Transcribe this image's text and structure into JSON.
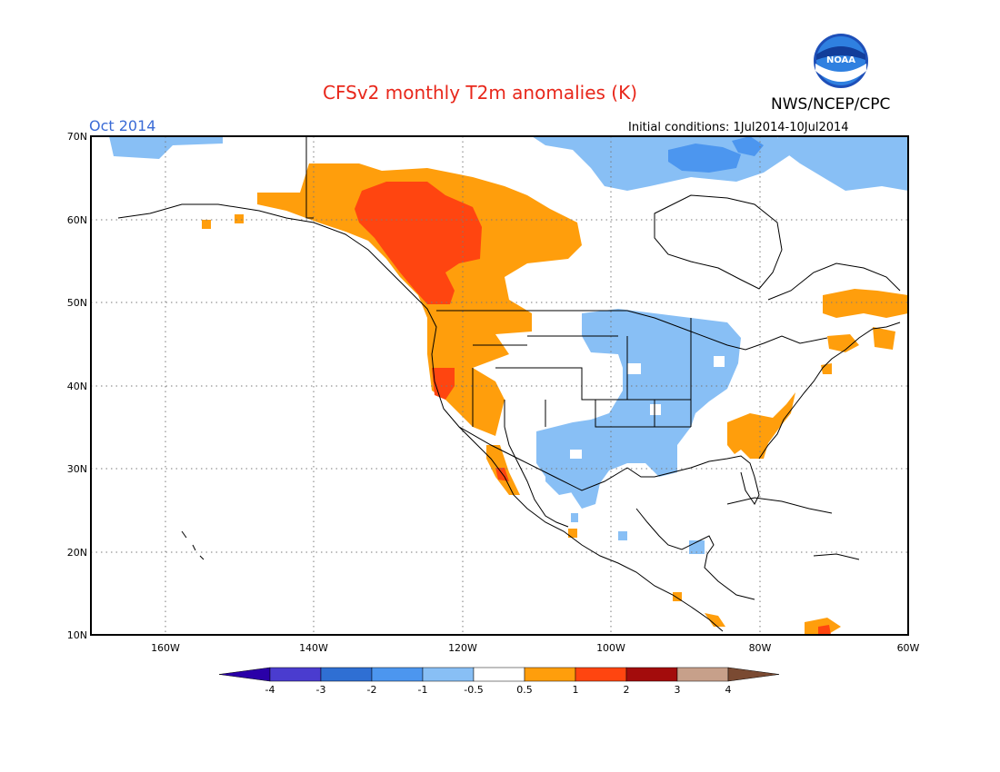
{
  "header": {
    "title": "CFSv2 monthly T2m anomalies (K)",
    "month_label": "Oct 2014",
    "agency": "NWS/NCEP/CPC",
    "logo_text": "NOAA",
    "initial_conditions": "Initial conditions: 1Jul2014-10Jul2014"
  },
  "axes": {
    "lat_ticks": [
      "70N",
      "60N",
      "50N",
      "40N",
      "30N",
      "20N",
      "10N"
    ],
    "lon_ticks": [
      "160W",
      "140W",
      "120W",
      "100W",
      "80W",
      "60W"
    ]
  },
  "colorbar": {
    "colors": [
      "#2a00a8",
      "#4a3ccf",
      "#2f6fd3",
      "#4c96ef",
      "#88bff5",
      "#ffffff",
      "#ff9e0c",
      "#ff4510",
      "#a30c0c",
      "#c7a08a",
      "#7a4a32"
    ],
    "labels": [
      "-4",
      "-3",
      "-2",
      "-1",
      "-0.5",
      "0.5",
      "1",
      "2",
      "3",
      "4"
    ]
  },
  "colors": {
    "warm_0_5_to_1": "#ff9e0c",
    "warm_1_to_2": "#ff4510",
    "warm_2_to_3": "#a30c0c",
    "cool_minus_1_to_minus_0_5": "#88bff5",
    "cool_minus_2_to_minus_1": "#4c96ef"
  }
}
